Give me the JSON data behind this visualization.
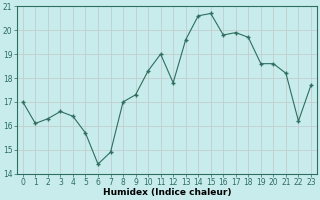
{
  "x": [
    0,
    1,
    2,
    3,
    4,
    5,
    6,
    7,
    8,
    9,
    10,
    11,
    12,
    13,
    14,
    15,
    16,
    17,
    18,
    19,
    20,
    21,
    22,
    23
  ],
  "y": [
    17.0,
    16.1,
    16.3,
    16.6,
    16.4,
    15.7,
    14.4,
    14.9,
    17.0,
    17.3,
    18.3,
    19.0,
    17.8,
    19.6,
    20.6,
    20.7,
    19.8,
    19.9,
    19.7,
    18.6,
    18.6,
    18.2,
    16.2,
    17.7
  ],
  "bg_color": "#c8ecec",
  "line_color": "#2d6e5e",
  "marker_color": "#2d6e5e",
  "grid_color": "#c0c8c8",
  "xlabel": "Humidex (Indice chaleur)",
  "ylim": [
    14,
    21
  ],
  "xlim": [
    -0.5,
    23.5
  ],
  "yticks": [
    14,
    15,
    16,
    17,
    18,
    19,
    20,
    21
  ],
  "xticks": [
    0,
    1,
    2,
    3,
    4,
    5,
    6,
    7,
    8,
    9,
    10,
    11,
    12,
    13,
    14,
    15,
    16,
    17,
    18,
    19,
    20,
    21,
    22,
    23
  ],
  "spine_color": "#2d6e5e",
  "tick_color": "#2d6e5e",
  "label_color": "#2d6e5e"
}
